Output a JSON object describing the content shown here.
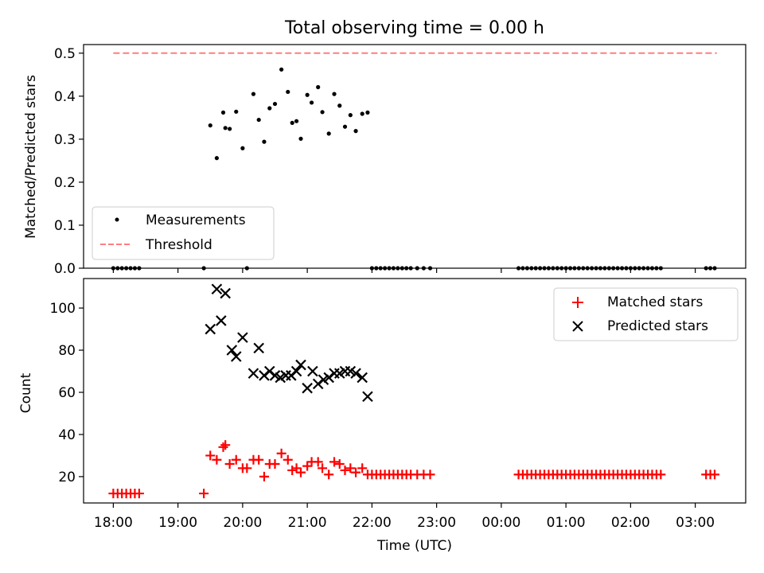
{
  "title": "Total observing time = 0.00 h",
  "x_tick_labels": [
    "18:00",
    "19:00",
    "20:00",
    "21:00",
    "22:00",
    "23:00",
    "00:00",
    "01:00",
    "02:00",
    "03:00"
  ],
  "chart_data": [
    {
      "type": "scatter",
      "title": "Total observing time = 0.00 h",
      "xlabel": "",
      "ylabel": "Matched/Predicted stars",
      "x_unit": "hours since 18:00 UTC",
      "xlim": [
        -0.46,
        9.78
      ],
      "ylim": [
        0,
        0.52
      ],
      "y_ticks": [
        0.0,
        0.1,
        0.2,
        0.3,
        0.4,
        0.5
      ],
      "y_tick_labels": [
        "0.0",
        "0.1",
        "0.2",
        "0.3",
        "0.4",
        "0.5"
      ],
      "legend": "lower-left",
      "grid": false,
      "series": [
        {
          "name": "Measurements",
          "marker": "dot",
          "color": "#000000",
          "x": [
            0.0,
            0.067,
            0.133,
            0.2,
            0.267,
            0.333,
            0.4,
            1.4,
            1.5,
            1.6,
            1.7,
            1.733,
            1.8,
            1.9,
            2.0,
            2.067,
            2.167,
            2.25,
            2.333,
            2.417,
            2.5,
            2.6,
            2.7,
            2.767,
            2.833,
            2.9,
            3.0,
            3.067,
            3.167,
            3.233,
            3.333,
            3.417,
            3.5,
            3.583,
            3.667,
            3.75,
            3.85,
            3.933,
            4.0,
            4.067,
            4.133,
            4.2,
            4.267,
            4.333,
            4.4,
            4.467,
            4.533,
            4.6,
            4.7,
            4.8,
            4.9,
            6.267,
            6.333,
            6.4,
            6.467,
            6.533,
            6.6,
            6.667,
            6.733,
            6.8,
            6.867,
            6.933,
            7.0,
            7.067,
            7.133,
            7.2,
            7.267,
            7.333,
            7.4,
            7.467,
            7.533,
            7.6,
            7.667,
            7.733,
            7.8,
            7.867,
            7.933,
            8.0,
            8.067,
            8.133,
            8.2,
            8.267,
            8.333,
            8.4,
            8.467,
            9.167,
            9.233,
            9.3
          ],
          "y": [
            0,
            0,
            0,
            0,
            0,
            0,
            0,
            0,
            0.332,
            0.256,
            0.362,
            0.326,
            0.324,
            0.364,
            0.279,
            0,
            0.405,
            0.345,
            0.294,
            0.372,
            0.382,
            0.462,
            0.41,
            0.338,
            0.342,
            0.301,
            0.403,
            0.385,
            0.421,
            0.363,
            0.313,
            0.405,
            0.378,
            0.329,
            0.356,
            0.319,
            0.359,
            0.362,
            0,
            0,
            0,
            0,
            0,
            0,
            0,
            0,
            0,
            0,
            0,
            0,
            0,
            0,
            0,
            0,
            0,
            0,
            0,
            0,
            0,
            0,
            0,
            0,
            0,
            0,
            0,
            0,
            0,
            0,
            0,
            0,
            0,
            0,
            0,
            0,
            0,
            0,
            0,
            0,
            0,
            0,
            0,
            0,
            0,
            0,
            0,
            0,
            0,
            0
          ]
        },
        {
          "name": "Threshold",
          "marker": "dashed-line",
          "color": "#ff7f7f",
          "x": [
            0.0,
            9.333
          ],
          "y": [
            0.5,
            0.5
          ]
        }
      ]
    },
    {
      "type": "scatter",
      "title": "",
      "xlabel": "Time (UTC)",
      "ylabel": "Count",
      "x_unit": "hours since 18:00 UTC",
      "xlim": [
        -0.46,
        9.78
      ],
      "ylim": [
        7.5,
        114
      ],
      "y_ticks": [
        20,
        40,
        60,
        80,
        100
      ],
      "y_tick_labels": [
        "20",
        "40",
        "60",
        "80",
        "100"
      ],
      "legend": "upper-right",
      "grid": false,
      "series": [
        {
          "name": "Matched stars",
          "marker": "plus",
          "color": "#ff0000",
          "x": [
            0.0,
            0.067,
            0.133,
            0.2,
            0.267,
            0.333,
            0.4,
            1.4,
            1.5,
            1.6,
            1.7,
            1.733,
            1.8,
            1.9,
            2.0,
            2.067,
            2.167,
            2.25,
            2.333,
            2.417,
            2.5,
            2.6,
            2.7,
            2.767,
            2.833,
            2.9,
            3.0,
            3.067,
            3.167,
            3.233,
            3.333,
            3.417,
            3.5,
            3.583,
            3.667,
            3.75,
            3.85,
            3.933,
            4.0,
            4.067,
            4.133,
            4.2,
            4.267,
            4.333,
            4.4,
            4.467,
            4.533,
            4.6,
            4.7,
            4.8,
            4.9,
            6.267,
            6.333,
            6.4,
            6.467,
            6.533,
            6.6,
            6.667,
            6.733,
            6.8,
            6.867,
            6.933,
            7.0,
            7.067,
            7.133,
            7.2,
            7.267,
            7.333,
            7.4,
            7.467,
            7.533,
            7.6,
            7.667,
            7.733,
            7.8,
            7.867,
            7.933,
            8.0,
            8.067,
            8.133,
            8.2,
            8.267,
            8.333,
            8.4,
            8.467,
            9.167,
            9.233,
            9.3
          ],
          "y": [
            12,
            12,
            12,
            12,
            12,
            12,
            12,
            12,
            30,
            28,
            34,
            35,
            26,
            28,
            24,
            24,
            28,
            28,
            20,
            26,
            26,
            31,
            28,
            23,
            24,
            22,
            25,
            27,
            27,
            24,
            21,
            27,
            26,
            23,
            24,
            22,
            24,
            21,
            21,
            21,
            21,
            21,
            21,
            21,
            21,
            21,
            21,
            21,
            21,
            21,
            21,
            21,
            21,
            21,
            21,
            21,
            21,
            21,
            21,
            21,
            21,
            21,
            21,
            21,
            21,
            21,
            21,
            21,
            21,
            21,
            21,
            21,
            21,
            21,
            21,
            21,
            21,
            21,
            21,
            21,
            21,
            21,
            21,
            21,
            21,
            21,
            21,
            21
          ]
        },
        {
          "name": "Predicted stars",
          "marker": "x",
          "color": "#000000",
          "x": [
            1.5,
            1.6,
            1.667,
            1.733,
            1.833,
            1.9,
            2.0,
            2.167,
            2.25,
            2.333,
            2.417,
            2.5,
            2.583,
            2.667,
            2.75,
            2.833,
            2.9,
            3.0,
            3.083,
            3.167,
            3.25,
            3.333,
            3.417,
            3.5,
            3.583,
            3.667,
            3.75,
            3.85,
            3.933
          ],
          "y": [
            90,
            109,
            94,
            107,
            80,
            77,
            86,
            69,
            81,
            68,
            70,
            68,
            67,
            68,
            68,
            70,
            73,
            62,
            70,
            64,
            66,
            67,
            69,
            69,
            70,
            70,
            69,
            67,
            58
          ]
        }
      ]
    }
  ]
}
